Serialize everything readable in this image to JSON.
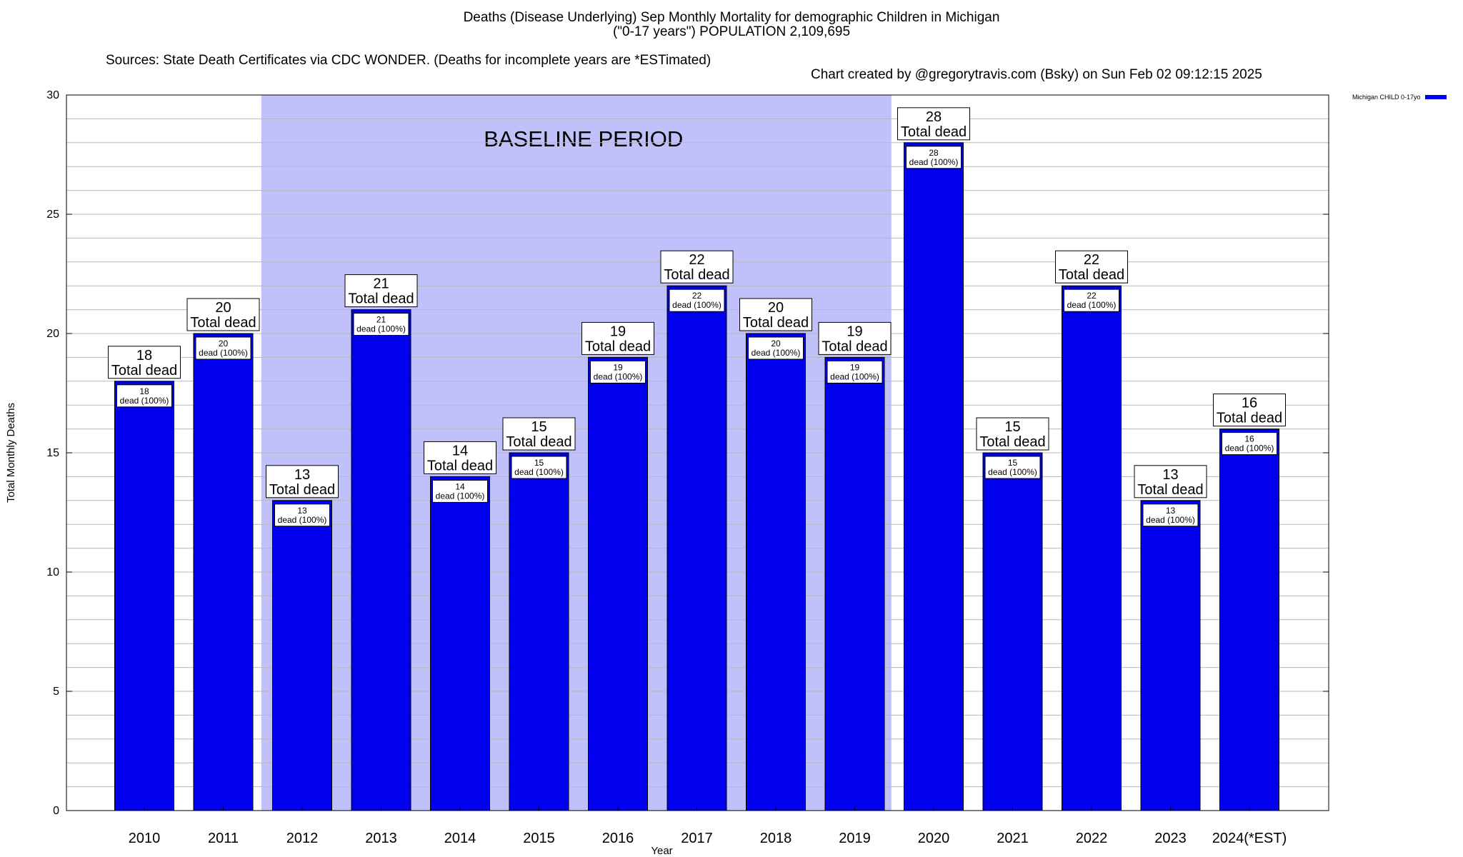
{
  "chart_data": {
    "type": "bar",
    "title": "Deaths (Disease Underlying) Sep Monthly Mortality for demographic Children in Michigan",
    "subtitle": "(\"0-17 years\") POPULATION 2,109,695",
    "source_left": "Sources: State Death Certificates via CDC WONDER. (Deaths for incomplete years are *ESTimated)",
    "source_right": "Chart created by @gregorytravis.com (Bsky) on Sun Feb 02 09:12:15 2025",
    "xlabel": "Year",
    "ylabel": "Total Monthly Deaths",
    "ylim": [
      0,
      30
    ],
    "y_ticks": [
      "0",
      "5",
      "10",
      "15",
      "20",
      "25",
      "30"
    ],
    "categories": [
      "2010",
      "2011",
      "2012",
      "2013",
      "2014",
      "2015",
      "2016",
      "2017",
      "2018",
      "2019",
      "2020",
      "2021",
      "2022",
      "2023",
      "2024(*EST)"
    ],
    "series": [
      {
        "name": "Michigan CHILD 0-17yo",
        "values": [
          18,
          20,
          13,
          21,
          14,
          15,
          19,
          22,
          20,
          19,
          28,
          15,
          22,
          13,
          16
        ],
        "color": "#0000ee"
      }
    ],
    "top_label_suffix": "Total dead",
    "inner_label_suffix": "dead (100%)",
    "baseline_band": {
      "label": "BASELINE PERIOD",
      "start": "2012",
      "end": "2019",
      "color": "#c0c0fa"
    },
    "grid": true,
    "legend_position": "top-right"
  }
}
